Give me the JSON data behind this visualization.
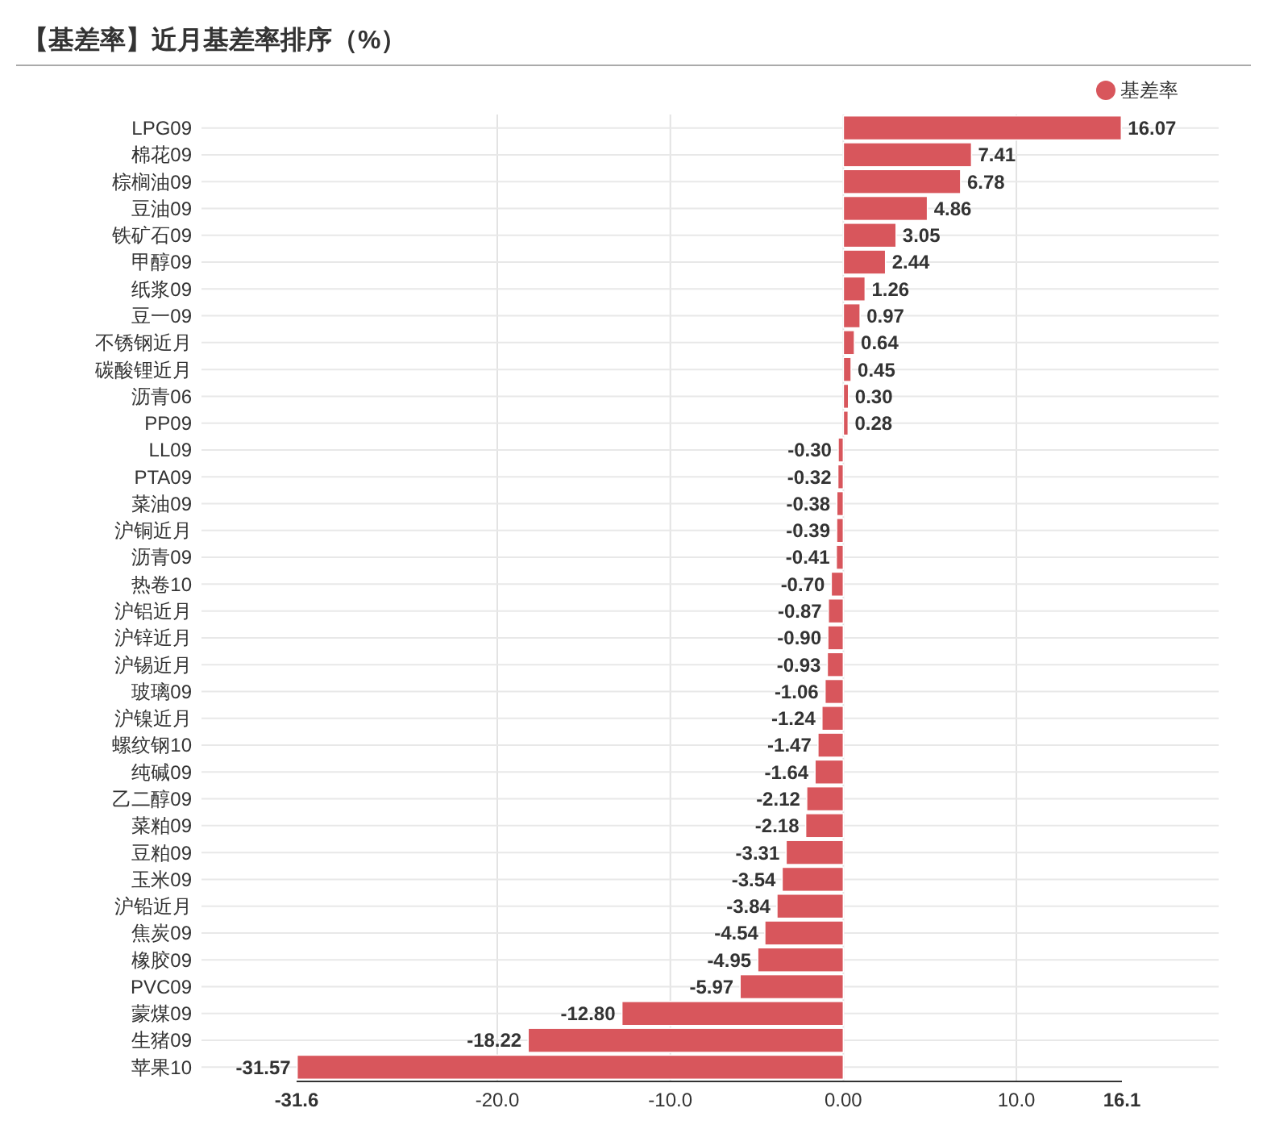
{
  "chart_data": {
    "type": "bar",
    "orientation": "horizontal",
    "title": "【基差率】近月基差率排序（%）",
    "categories": [
      "LPG09",
      "棉花09",
      "棕榈油09",
      "豆油09",
      "铁矿石09",
      "甲醇09",
      "纸浆09",
      "豆一09",
      "不锈钢近月",
      "碳酸锂近月",
      "沥青06",
      "PP09",
      "LL09",
      "PTA09",
      "菜油09",
      "沪铜近月",
      "沥青09",
      "热卷10",
      "沪铝近月",
      "沪锌近月",
      "沪锡近月",
      "玻璃09",
      "沪镍近月",
      "螺纹钢10",
      "纯碱09",
      "乙二醇09",
      "菜粕09",
      "豆粕09",
      "玉米09",
      "沪铅近月",
      "焦炭09",
      "橡胶09",
      "PVC09",
      "蒙煤09",
      "生猪09",
      "苹果10"
    ],
    "series": [
      {
        "name": "基差率",
        "color": "#d8565c",
        "values": [
          16.07,
          7.41,
          6.78,
          4.86,
          3.05,
          2.44,
          1.26,
          0.97,
          0.64,
          0.45,
          0.3,
          0.28,
          -0.3,
          -0.32,
          -0.38,
          -0.39,
          -0.41,
          -0.7,
          -0.87,
          -0.9,
          -0.93,
          -1.06,
          -1.24,
          -1.47,
          -1.64,
          -2.12,
          -2.18,
          -3.31,
          -3.54,
          -3.84,
          -4.54,
          -4.95,
          -5.97,
          -12.8,
          -18.22,
          -31.57
        ],
        "value_labels": [
          "16.07",
          "7.41",
          "6.78",
          "4.86",
          "3.05",
          "2.44",
          "1.26",
          "0.97",
          "0.64",
          "0.45",
          "0.30",
          "0.28",
          "-0.30",
          "-0.32",
          "-0.38",
          "-0.39",
          "-0.41",
          "-0.70",
          "-0.87",
          "-0.90",
          "-0.93",
          "-1.06",
          "-1.24",
          "-1.47",
          "-1.64",
          "-2.12",
          "-2.18",
          "-3.31",
          "-3.54",
          "-3.84",
          "-4.54",
          "-4.95",
          "-5.97",
          "-12.80",
          "-18.22",
          "-31.57"
        ]
      }
    ],
    "xlim": [
      -31.6,
      16.1
    ],
    "xticks": [
      -31.6,
      {
        "value": -20,
        "label": "-20.0"
      },
      {
        "value": -10,
        "label": "-10.0"
      },
      {
        "value": 0,
        "label": "0.00"
      },
      {
        "value": 10,
        "label": "10.0"
      },
      16.1
    ],
    "grid": true,
    "legend": "top right"
  }
}
